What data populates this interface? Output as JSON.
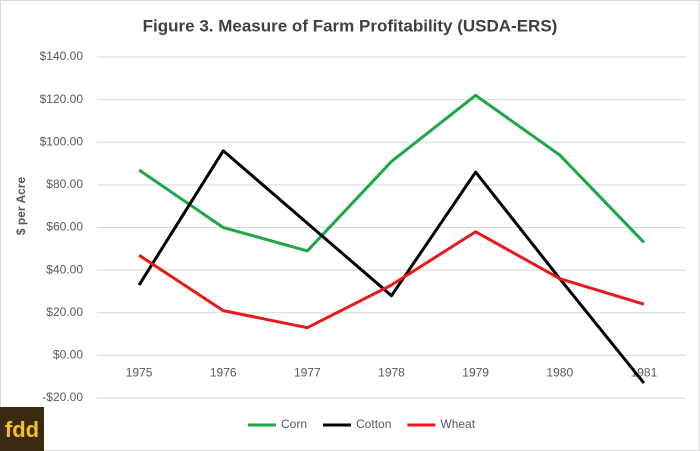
{
  "chart_data": {
    "type": "line",
    "title": "Figure 3. Measure of Farm Profitability (USDA-ERS)",
    "y_label": "$ per Acre",
    "categories": [
      "1975",
      "1976",
      "1977",
      "1978",
      "1979",
      "1980",
      "1981"
    ],
    "series": [
      {
        "name": "Corn",
        "color": "#1fa64a",
        "values": [
          87,
          60,
          49,
          91,
          122,
          94,
          53
        ]
      },
      {
        "name": "Cotton",
        "color": "#000000",
        "values": [
          33,
          96,
          62,
          28,
          86,
          36,
          -13
        ]
      },
      {
        "name": "Wheat",
        "color": "#e8191b",
        "values": [
          47,
          21,
          13,
          33,
          58,
          36,
          24
        ]
      }
    ],
    "ylim": [
      -20,
      140
    ],
    "yticks": [
      {
        "value": -20,
        "label": "-$20.00"
      },
      {
        "value": 0,
        "label": "$0.00"
      },
      {
        "value": 20,
        "label": "$20.00"
      },
      {
        "value": 40,
        "label": "$40.00"
      },
      {
        "value": 60,
        "label": "$60.00"
      },
      {
        "value": 80,
        "label": "$80.00"
      },
      {
        "value": 100,
        "label": "$100.00"
      },
      {
        "value": 120,
        "label": "$120.00"
      },
      {
        "value": 140,
        "label": "$140.00"
      }
    ],
    "grid": true,
    "legend": "bottom",
    "logo": "fdd"
  }
}
